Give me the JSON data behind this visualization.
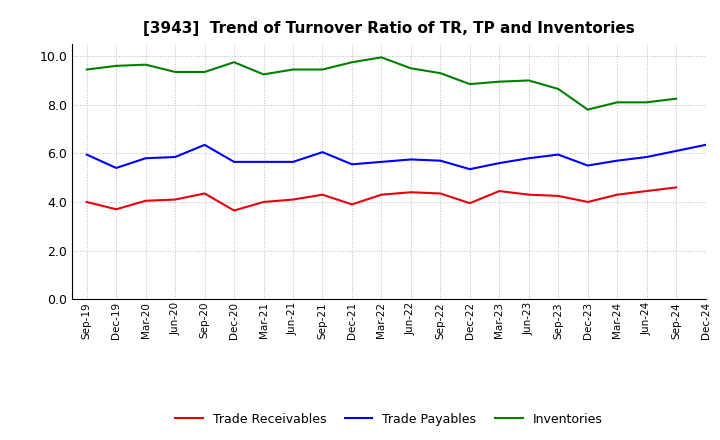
{
  "title": "[3943]  Trend of Turnover Ratio of TR, TP and Inventories",
  "x_labels": [
    "Sep-19",
    "Dec-19",
    "Mar-20",
    "Jun-20",
    "Sep-20",
    "Dec-20",
    "Mar-21",
    "Jun-21",
    "Sep-21",
    "Dec-21",
    "Mar-22",
    "Jun-22",
    "Sep-22",
    "Dec-22",
    "Mar-23",
    "Jun-23",
    "Sep-23",
    "Dec-23",
    "Mar-24",
    "Jun-24",
    "Sep-24",
    "Dec-24"
  ],
  "trade_receivables": [
    4.0,
    3.7,
    4.05,
    4.1,
    4.35,
    3.65,
    4.0,
    4.1,
    4.3,
    3.9,
    4.3,
    4.4,
    4.35,
    3.95,
    4.45,
    4.3,
    4.25,
    4.0,
    4.3,
    4.45,
    4.6,
    null
  ],
  "trade_payables": [
    5.95,
    5.4,
    5.8,
    5.85,
    6.35,
    5.65,
    5.65,
    5.65,
    6.05,
    5.55,
    5.65,
    5.75,
    5.7,
    5.35,
    5.6,
    5.8,
    5.95,
    5.5,
    5.7,
    5.85,
    6.1,
    6.35
  ],
  "inventories": [
    9.45,
    9.6,
    9.65,
    9.35,
    9.35,
    9.75,
    9.25,
    9.45,
    9.45,
    9.75,
    9.95,
    9.5,
    9.3,
    8.85,
    8.95,
    9.0,
    8.65,
    7.8,
    8.1,
    8.1,
    8.25,
    null
  ],
  "ylim": [
    0.0,
    10.5
  ],
  "yticks": [
    0.0,
    2.0,
    4.0,
    6.0,
    8.0,
    10.0
  ],
  "line_color_tr": "#e8000d",
  "line_color_tp": "#0000ff",
  "line_color_inv": "#008000",
  "legend_tr": "Trade Receivables",
  "legend_tp": "Trade Payables",
  "legend_inv": "Inventories",
  "background_color": "#ffffff",
  "grid_color": "#bbbbbb"
}
